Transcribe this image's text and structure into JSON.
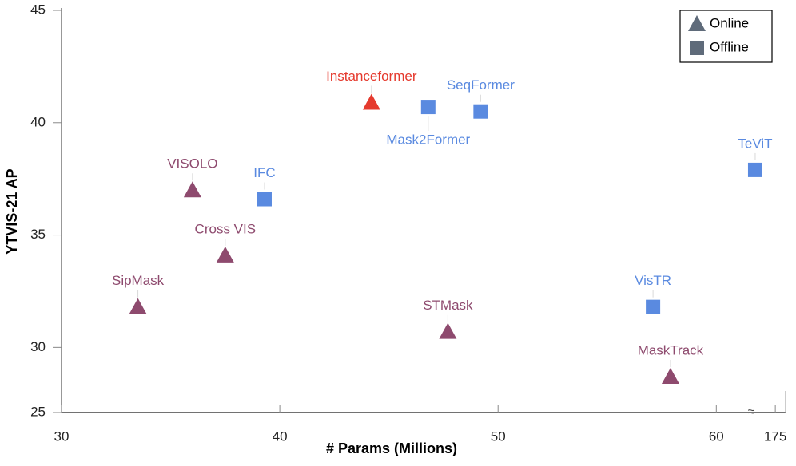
{
  "chart_data": {
    "type": "scatter",
    "xlabel": "# Params (Millions)",
    "ylabel": "YTVIS-21 AP",
    "xlim": [
      30,
      182
    ],
    "xbreak": [
      61.6,
      158.6
    ],
    "ylim": [
      25,
      45
    ],
    "ybreak": [
      25,
      27.1
    ],
    "xticks": [
      30,
      40,
      50,
      60,
      175
    ],
    "yticks": [
      25,
      30,
      35,
      40,
      45
    ],
    "legend": "upper right",
    "series": [
      {
        "name": "Online",
        "marker": "triangle",
        "legend_color": "#5f6b7a",
        "labels": [
          "SipMask",
          "VISOLO",
          "Cross VIS",
          "Instanceformer",
          "STMask",
          "MaskTrack"
        ],
        "colors": [
          "#8e4a6e",
          "#8e4a6e",
          "#8e4a6e",
          "#e53a2e",
          "#8e4a6e",
          "#8e4a6e"
        ],
        "x": [
          33.5,
          36.0,
          37.5,
          44.2,
          47.7,
          57.9
        ],
        "values": [
          31.8,
          37.0,
          34.1,
          40.9,
          30.7,
          28.7
        ]
      },
      {
        "name": "Offline",
        "marker": "square",
        "legend_color": "#5f6b7a",
        "labels": [
          "IFC",
          "Mask2Former",
          "SeqFormer",
          "VisTR",
          "TeViT"
        ],
        "colors": [
          "#5a8ae0",
          "#5a8ae0",
          "#5a8ae0",
          "#5a8ae0",
          "#5a8ae0"
        ],
        "x": [
          39.3,
          46.8,
          49.2,
          57.1,
          161.3
        ],
        "values": [
          36.6,
          40.7,
          40.5,
          31.8,
          37.9
        ]
      }
    ]
  }
}
